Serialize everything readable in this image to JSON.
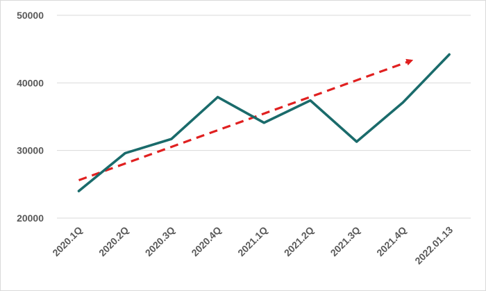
{
  "chart_data": {
    "type": "line",
    "title": "",
    "xlabel": "",
    "ylabel": "",
    "categories": [
      "2020.1Q",
      "2020.2Q",
      "2020.3Q",
      "2020.4Q",
      "2021.1Q",
      "2021.2Q",
      "2021.3Q",
      "2021.4Q",
      "2022.01.13"
    ],
    "series": [
      {
        "values": [
          24000,
          29600,
          31700,
          37900,
          34100,
          37400,
          31300,
          37100,
          44200
        ],
        "color": "#1a6b6b"
      }
    ],
    "trend_arrow": {
      "style": "dashed",
      "color": "#e02020",
      "start": {
        "category": "2020.1Q",
        "value": 25600
      },
      "end": {
        "category": "2021.4Q",
        "value": 43300
      }
    },
    "ylim": [
      20000,
      50000
    ],
    "yticks": [
      20000,
      30000,
      40000,
      50000
    ],
    "grid": true,
    "legend": "none"
  }
}
